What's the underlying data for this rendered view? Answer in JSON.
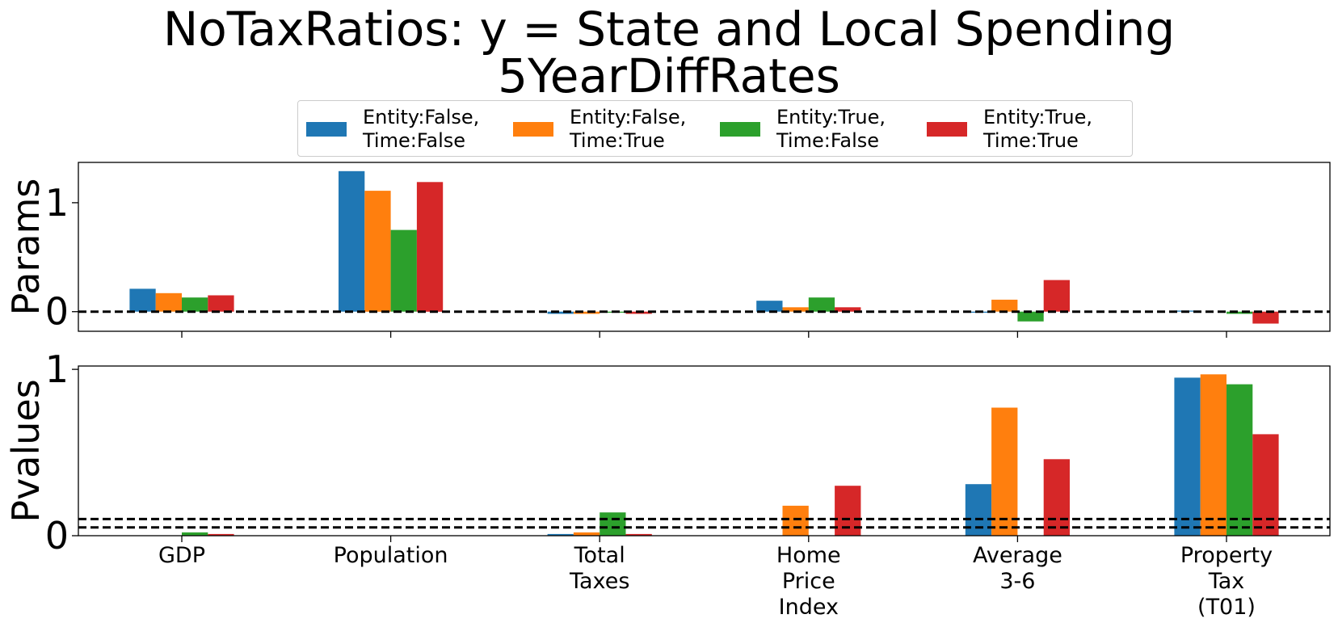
{
  "chart_data": {
    "type": "bar",
    "title_line1": "NoTaxRatios: y = State and Local Spending",
    "title_line2": "5YearDiffRates",
    "categories": [
      [
        "GDP"
      ],
      [
        "Population"
      ],
      [
        "Total",
        "Taxes"
      ],
      [
        "Home",
        "Price",
        "Index"
      ],
      [
        "Average",
        "3-6"
      ],
      [
        "Property",
        "Tax",
        "(T01)"
      ]
    ],
    "series": [
      {
        "name_line1": "Entity:False,",
        "name_line2": "Time:False",
        "color": "#1f77b4"
      },
      {
        "name_line1": "Entity:False,",
        "name_line2": "Time:True",
        "color": "#ff7f0e"
      },
      {
        "name_line1": "Entity:True,",
        "name_line2": "Time:False",
        "color": "#2ca02c"
      },
      {
        "name_line1": "Entity:True,",
        "name_line2": "Time:True",
        "color": "#d62728"
      }
    ],
    "panels": [
      {
        "ylabel": "Params",
        "ylim": [
          -0.18,
          1.37
        ],
        "yticks": [
          0,
          1
        ],
        "ref_lines": [
          0
        ],
        "values": [
          [
            0.21,
            1.29,
            -0.02,
            0.1,
            -0.01,
            0.01
          ],
          [
            0.17,
            1.11,
            -0.02,
            0.04,
            0.11,
            0.0
          ],
          [
            0.13,
            0.75,
            -0.01,
            0.13,
            -0.09,
            -0.02
          ],
          [
            0.15,
            1.19,
            -0.02,
            0.04,
            0.29,
            -0.11
          ]
        ]
      },
      {
        "ylabel": "Pvalues",
        "ylim": [
          0,
          1.02
        ],
        "yticks": [
          0,
          1
        ],
        "ref_lines": [
          0.05,
          0.1
        ],
        "values": [
          [
            0.0,
            0.0,
            0.01,
            0.0,
            0.31,
            0.95
          ],
          [
            0.0,
            0.0,
            0.02,
            0.18,
            0.77,
            0.97
          ],
          [
            0.02,
            0.0,
            0.14,
            0.0,
            0.0,
            0.91
          ],
          [
            0.01,
            0.0,
            0.01,
            0.3,
            0.46,
            0.61
          ]
        ]
      }
    ]
  }
}
